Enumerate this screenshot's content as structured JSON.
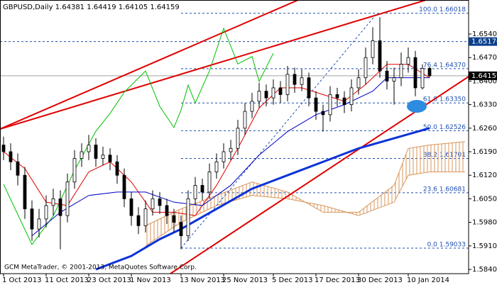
{
  "chart_data": {
    "type": "candlestick",
    "symbol": "GBPUSD,Daily",
    "copyright": "GCM MetaTrader, © 2001-2013, MetaQuotes Software Corp.",
    "xlim": [
      -0.5,
      65.5
    ],
    "ylim": [
      1.58274,
      1.66412
    ],
    "yticks": [
      {
        "value": 1.654,
        "label": "1.65400"
      },
      {
        "value": 1.647,
        "label": "1.64700"
      },
      {
        "value": 1.64,
        "label": "1.64000"
      },
      {
        "value": 1.633,
        "label": "1.63300"
      },
      {
        "value": 1.626,
        "label": "1.62600"
      },
      {
        "value": 1.619,
        "label": "1.61900"
      },
      {
        "value": 1.612,
        "label": "1.61200"
      },
      {
        "value": 1.605,
        "label": "1.60500"
      },
      {
        "value": 1.598,
        "label": "1.59800"
      },
      {
        "value": 1.591,
        "label": "1.59100"
      },
      {
        "value": 1.584,
        "label": "1.58400"
      }
    ],
    "xticks": [
      {
        "value": 0,
        "label": "1 Oct 2013"
      },
      {
        "value": 6,
        "label": "11 Oct 2013"
      },
      {
        "value": 12,
        "label": "23 Oct 2013"
      },
      {
        "value": 18,
        "label": "1 Nov 2013"
      },
      {
        "value": 25,
        "label": "13 Nov 2013"
      },
      {
        "value": 31,
        "label": "25 Nov 2013"
      },
      {
        "value": 38,
        "label": "5 Dec 2013"
      },
      {
        "value": 44,
        "label": "17 Dec 2013"
      },
      {
        "value": 50,
        "label": "30 Dec 2013"
      },
      {
        "value": 57,
        "label": "10 Jan 2014"
      }
    ],
    "bull_color": "#ffffff",
    "bear_color": "#000000",
    "open": [
      1.621,
      1.619,
      1.616,
      1.612,
      1.602,
      1.596,
      1.599,
      1.603,
      1.605,
      1.6,
      1.61,
      1.617,
      1.619,
      1.621,
      1.617,
      1.618,
      1.616,
      1.612,
      1.605,
      1.6,
      1.597,
      1.602,
      1.605,
      1.603,
      1.6,
      1.598,
      1.594,
      1.605,
      1.609,
      1.607,
      1.613,
      1.616,
      1.619,
      1.62,
      1.626,
      1.631,
      1.634,
      1.637,
      1.635,
      1.638,
      1.636,
      1.642,
      1.639,
      1.641,
      1.635,
      1.631,
      1.63,
      1.636,
      1.635,
      1.633,
      1.638,
      1.641,
      1.647,
      1.652,
      1.643,
      1.64,
      1.641,
      1.645,
      1.647,
      1.638,
      1.64381
    ],
    "high": [
      1.6235,
      1.6215,
      1.6185,
      1.6145,
      1.6045,
      1.602,
      1.606,
      1.608,
      1.6075,
      1.6125,
      1.6195,
      1.6215,
      1.624,
      1.623,
      1.6205,
      1.62,
      1.618,
      1.614,
      1.607,
      1.6025,
      1.6045,
      1.6075,
      1.607,
      1.605,
      1.602,
      1.6,
      1.6075,
      1.6115,
      1.611,
      1.6155,
      1.6185,
      1.6215,
      1.6225,
      1.6285,
      1.6335,
      1.6365,
      1.6395,
      1.639,
      1.6405,
      1.64,
      1.6445,
      1.644,
      1.6435,
      1.6425,
      1.637,
      1.633,
      1.6385,
      1.638,
      1.637,
      1.6405,
      1.6435,
      1.65,
      1.656,
      1.659,
      1.646,
      1.644,
      1.6485,
      1.65,
      1.649,
      1.645,
      1.64419
    ],
    "low": [
      1.6165,
      1.6135,
      1.609,
      1.599,
      1.5925,
      1.5935,
      1.5965,
      1.6,
      1.59,
      1.598,
      1.608,
      1.6145,
      1.6165,
      1.6145,
      1.615,
      1.6135,
      1.6095,
      1.6025,
      1.597,
      1.5945,
      1.595,
      1.6,
      1.6005,
      1.5975,
      1.595,
      1.59,
      1.5925,
      1.603,
      1.6045,
      1.605,
      1.611,
      1.614,
      1.6165,
      1.618,
      1.624,
      1.629,
      1.632,
      1.6325,
      1.633,
      1.6335,
      1.634,
      1.6365,
      1.637,
      1.6325,
      1.6285,
      1.625,
      1.628,
      1.6325,
      1.6305,
      1.631,
      1.636,
      1.639,
      1.645,
      1.641,
      1.6375,
      1.633,
      1.6385,
      1.6425,
      1.6355,
      1.6375,
      1.64105
    ],
    "close": [
      1.619,
      1.616,
      1.612,
      1.602,
      1.596,
      1.599,
      1.603,
      1.605,
      1.6,
      1.61,
      1.617,
      1.619,
      1.621,
      1.617,
      1.618,
      1.616,
      1.612,
      1.605,
      1.6,
      1.597,
      1.602,
      1.605,
      1.603,
      1.6,
      1.598,
      1.594,
      1.605,
      1.609,
      1.607,
      1.613,
      1.616,
      1.619,
      1.62,
      1.626,
      1.631,
      1.634,
      1.637,
      1.635,
      1.638,
      1.636,
      1.642,
      1.639,
      1.641,
      1.635,
      1.631,
      1.63,
      1.636,
      1.635,
      1.633,
      1.638,
      1.641,
      1.647,
      1.652,
      1.643,
      1.64,
      1.641,
      1.645,
      1.647,
      1.638,
      1.6438,
      1.64159
    ],
    "cloud": {
      "color": "#d8955a",
      "x": [
        20,
        25,
        30,
        35,
        40,
        45,
        50,
        55,
        57,
        60,
        65
      ],
      "span_a": [
        1.597,
        1.602,
        1.606,
        1.61,
        1.607,
        1.601,
        1.601,
        1.609,
        1.62,
        1.621,
        1.622
      ],
      "span_b": [
        1.591,
        1.598,
        1.603,
        1.606,
        1.605,
        1.603,
        1.6,
        1.604,
        1.612,
        1.613,
        1.613
      ]
    },
    "indicators": [
      {
        "color": "#00c000",
        "width": 1,
        "x": [
          0,
          4,
          7,
          10,
          13,
          15,
          17,
          19,
          20,
          22,
          24,
          25,
          26,
          27,
          29,
          31,
          33,
          35,
          36,
          38
        ],
        "values": [
          1.6093,
          1.5914,
          1.5999,
          1.6135,
          1.6251,
          1.6304,
          1.6367,
          1.6409,
          1.643,
          1.6325,
          1.6262,
          1.6314,
          1.6388,
          1.6335,
          1.643,
          1.6557,
          1.6451,
          1.6473,
          1.6399,
          1.6483
        ]
      },
      {
        "color": "#e00000",
        "width": 1,
        "x": [
          0,
          3,
          6,
          9,
          12,
          15,
          18,
          21,
          24,
          27,
          30,
          33,
          36,
          39,
          42,
          45,
          48,
          51,
          54,
          57,
          60
        ],
        "values": [
          1.619,
          1.614,
          1.604,
          1.603,
          1.613,
          1.616,
          1.61,
          1.601,
          1.601,
          1.6,
          1.609,
          1.62,
          1.632,
          1.638,
          1.638,
          1.636,
          1.634,
          1.639,
          1.645,
          1.645,
          1.641
        ]
      },
      {
        "color": "#0000c8",
        "width": 1,
        "x": [
          4,
          8,
          12,
          16,
          20,
          24,
          28,
          32,
          36,
          40,
          44,
          48,
          52,
          54,
          57,
          60
        ],
        "values": [
          1.594,
          1.601,
          1.606,
          1.607,
          1.607,
          1.604,
          1.603,
          1.609,
          1.618,
          1.625,
          1.63,
          1.633,
          1.637,
          1.641,
          1.641,
          1.641
        ]
      },
      {
        "color": "#0a32d8",
        "width": 3,
        "x": [
          13,
          18,
          22,
          25,
          30,
          35,
          40,
          45,
          50,
          55,
          60
        ],
        "values": [
          1.584,
          1.588,
          1.593,
          1.596,
          1.602,
          1.608,
          1.612,
          1.616,
          1.62,
          1.623,
          1.626
        ]
      }
    ],
    "fib_levels": [
      {
        "value": 1.66018,
        "label": "100.0 1.66018"
      },
      {
        "value": 1.6437,
        "label": "76.4 1.64370"
      },
      {
        "value": 1.6335,
        "label": "61.8 1.63350"
      },
      {
        "value": 1.62526,
        "label": "50.0 1.62526"
      },
      {
        "value": 1.61701,
        "label": "38.2 1.61701"
      },
      {
        "value": 1.60681,
        "label": "23.6 1.60681"
      },
      {
        "value": 1.59033,
        "label": "0.0 1.59033"
      }
    ],
    "price_marks": [
      {
        "value": 1.65176,
        "color": "#0b3f8a"
      },
      {
        "value": 1.64159,
        "color": "#000000"
      }
    ]
  }
}
